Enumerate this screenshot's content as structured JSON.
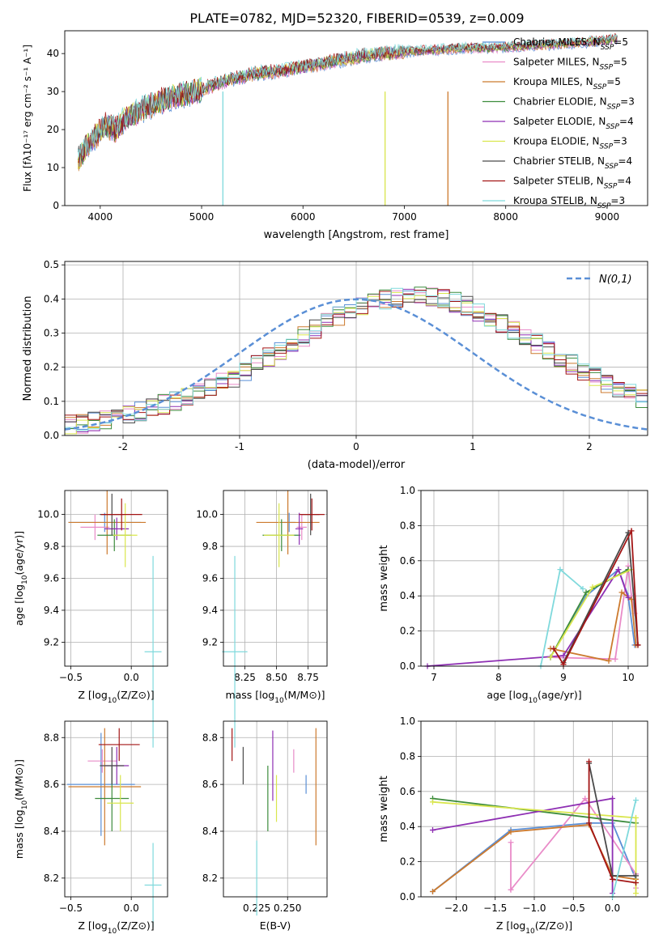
{
  "figure": {
    "title": "PLATE=0782, MJD=52320, FIBERID=0539, z=0.009"
  },
  "colors": {
    "Chabrier MILES": "#5a8fd6",
    "Salpeter MILES": "#e98bc8",
    "Kroupa MILES": "#cc7a2e",
    "Chabrier ELODIE": "#3d8c3d",
    "Salpeter ELODIE": "#8e2fb3",
    "Kroupa ELODIE": "#d9e64d",
    "Chabrier STELIB": "#4a4a4a",
    "Salpeter STELIB": "#a31515",
    "Kroupa STELIB": "#7fd9dc"
  },
  "chart_data": [
    {
      "id": "spectrum",
      "type": "line",
      "xlabel": "wavelength [Angstrom, rest frame]",
      "ylabel": "Flux [fλ10⁻¹⁷ erg cm⁻² s⁻¹ A⁻¹]",
      "xlim": [
        3650,
        9400
      ],
      "ylim": [
        0,
        46
      ],
      "xticks": [
        4000,
        5000,
        6000,
        7000,
        8000,
        9000
      ],
      "yticks": [
        0,
        10,
        20,
        30,
        40
      ],
      "grid": false,
      "legend_position": "top-right",
      "x": [
        3780,
        3850,
        3950,
        4050,
        4150,
        4250,
        4400,
        4550,
        4700,
        4850,
        5000,
        5200,
        5400,
        5600,
        5800,
        6000,
        6200,
        6400,
        6600,
        6800,
        7000,
        7300,
        7600,
        7900,
        8200,
        8500,
        8800,
        9000,
        9100
      ],
      "flux": [
        12,
        15,
        18,
        21,
        20,
        23,
        25,
        27,
        28.5,
        29.5,
        30.5,
        32.5,
        34,
        35,
        35.5,
        36.5,
        37.5,
        38.5,
        39.5,
        40,
        40.5,
        41,
        41.5,
        41.5,
        42,
        42.5,
        43,
        43.5,
        44
      ],
      "series": [
        {
          "name": "Chabrier MILES, N_SSP=5"
        },
        {
          "name": "Salpeter MILES, N_SSP=5"
        },
        {
          "name": "Kroupa MILES, N_SSP=5"
        },
        {
          "name": "Chabrier ELODIE, N_SSP=3"
        },
        {
          "name": "Salpeter ELODIE, N_SSP=4"
        },
        {
          "name": "Kroupa ELODIE, N_SSP=3"
        },
        {
          "name": "Chabrier STELIB, N_SSP=4"
        },
        {
          "name": "Salpeter STELIB, N_SSP=4"
        },
        {
          "name": "Kroupa STELIB, N_SSP=3"
        }
      ],
      "legend": [
        {
          "base": "Chabrier MILES, N",
          "sub": "SSP",
          "tail": "=5",
          "color": "#5a8fd6"
        },
        {
          "base": "Salpeter MILES, N",
          "sub": "SSP",
          "tail": "=5",
          "color": "#e98bc8"
        },
        {
          "base": "Kroupa MILES, N",
          "sub": "SSP",
          "tail": "=5",
          "color": "#cc7a2e"
        },
        {
          "base": "Chabrier ELODIE, N",
          "sub": "SSP",
          "tail": "=3",
          "color": "#3d8c3d"
        },
        {
          "base": "Salpeter ELODIE, N",
          "sub": "SSP",
          "tail": "=4",
          "color": "#8e2fb3"
        },
        {
          "base": "Kroupa ELODIE, N",
          "sub": "SSP",
          "tail": "=3",
          "color": "#d9e64d"
        },
        {
          "base": "Chabrier STELIB, N",
          "sub": "SSP",
          "tail": "=4",
          "color": "#4a4a4a"
        },
        {
          "base": "Salpeter STELIB, N",
          "sub": "SSP",
          "tail": "=4",
          "color": "#a31515"
        },
        {
          "base": "Kroupa STELIB, N",
          "sub": "SSP",
          "tail": "=3",
          "color": "#7fd9dc"
        }
      ],
      "drops": [
        {
          "x": 5210,
          "color": "#7fd9dc"
        },
        {
          "x": 6810,
          "color": "#d9e64d"
        },
        {
          "x": 7430,
          "color": "#cc7a2e"
        }
      ]
    },
    {
      "id": "residuals",
      "type": "histogram",
      "xlabel": "(data-model)/error",
      "ylabel": "Normed distribution",
      "xlim": [
        -2.5,
        2.5
      ],
      "ylim": [
        0,
        0.51
      ],
      "xticks": [
        -2,
        -1,
        0,
        1,
        2
      ],
      "yticks": [
        0.0,
        0.1,
        0.2,
        0.3,
        0.4,
        0.5
      ],
      "grid": true,
      "legend_position": "top-right",
      "legend_label": "N(0,1)",
      "bin_width": 0.1,
      "bin_start": -2.5,
      "envelope": [
        0.03,
        0.035,
        0.04,
        0.045,
        0.05,
        0.06,
        0.07,
        0.08,
        0.09,
        0.1,
        0.11,
        0.125,
        0.14,
        0.155,
        0.17,
        0.19,
        0.21,
        0.23,
        0.25,
        0.27,
        0.29,
        0.31,
        0.33,
        0.35,
        0.365,
        0.38,
        0.39,
        0.4,
        0.405,
        0.41,
        0.41,
        0.405,
        0.4,
        0.39,
        0.38,
        0.365,
        0.35,
        0.33,
        0.31,
        0.29,
        0.27,
        0.25,
        0.23,
        0.21,
        0.19,
        0.17,
        0.155,
        0.14,
        0.125,
        0.11
      ],
      "normal_curve": {
        "mu": 0,
        "sigma": 1,
        "label": "N(0,1)"
      }
    },
    {
      "id": "age-vs-Z",
      "type": "errorbar",
      "xlabel_base": "Z [log",
      "xlabel_tail": "(Z/Z⊙)]",
      "ylabel_base": "age  [log",
      "ylabel_tail": "(age/yr)]",
      "xlim": [
        -0.55,
        0.3
      ],
      "ylim": [
        9.05,
        10.15
      ],
      "xticks": [
        -0.5,
        0.0
      ],
      "yticks": [
        9.2,
        9.4,
        9.6,
        9.8,
        10.0
      ],
      "points": [
        {
          "x": -0.22,
          "y": 9.95,
          "xe": 0.3,
          "ye": 0.06,
          "color": "#5a8fd6"
        },
        {
          "x": -0.3,
          "y": 9.92,
          "xe": 0.12,
          "ye": 0.08,
          "color": "#e98bc8"
        },
        {
          "x": -0.2,
          "y": 9.95,
          "xe": 0.32,
          "ye": 0.2,
          "color": "#cc7a2e"
        },
        {
          "x": -0.14,
          "y": 9.87,
          "xe": 0.14,
          "ye": 0.1,
          "color": "#3d8c3d"
        },
        {
          "x": -0.12,
          "y": 9.91,
          "xe": 0.1,
          "ye": 0.07,
          "color": "#8e2fb3"
        },
        {
          "x": -0.05,
          "y": 9.87,
          "xe": 0.1,
          "ye": 0.2,
          "color": "#d9e64d"
        },
        {
          "x": -0.16,
          "y": 10.0,
          "xe": 0.1,
          "ye": 0.13,
          "color": "#4a4a4a"
        },
        {
          "x": -0.08,
          "y": 10.0,
          "xe": 0.17,
          "ye": 0.1,
          "color": "#a31515"
        },
        {
          "x": 0.18,
          "y": 9.14,
          "xe": 0.07,
          "ye": 0.6,
          "color": "#7fd9dc"
        }
      ]
    },
    {
      "id": "age-vs-mass",
      "type": "errorbar",
      "xlabel_base": "mass [log",
      "xlabel_tail": "(M/M⊙)]",
      "xlim": [
        8.08,
        8.9
      ],
      "ylim": [
        9.05,
        10.15
      ],
      "xticks": [
        8.25,
        8.5,
        8.75
      ],
      "yticks": [
        9.2,
        9.4,
        9.6,
        9.8,
        10.0
      ],
      "points": [
        {
          "x": 8.6,
          "y": 9.95,
          "xe": 0.05,
          "ye": 0.06,
          "color": "#5a8fd6"
        },
        {
          "x": 8.7,
          "y": 9.92,
          "xe": 0.04,
          "ye": 0.08,
          "color": "#e98bc8"
        },
        {
          "x": 8.59,
          "y": 9.95,
          "xe": 0.25,
          "ye": 0.2,
          "color": "#cc7a2e"
        },
        {
          "x": 8.54,
          "y": 9.87,
          "xe": 0.15,
          "ye": 0.1,
          "color": "#3d8c3d"
        },
        {
          "x": 8.68,
          "y": 9.91,
          "xe": 0.03,
          "ye": 0.1,
          "color": "#8e2fb3"
        },
        {
          "x": 8.52,
          "y": 9.87,
          "xe": 0.12,
          "ye": 0.2,
          "color": "#d9e64d"
        },
        {
          "x": 8.77,
          "y": 10.0,
          "xe": 0.07,
          "ye": 0.13,
          "color": "#4a4a4a"
        },
        {
          "x": 8.78,
          "y": 10.0,
          "xe": 0.1,
          "ye": 0.1,
          "color": "#a31515"
        },
        {
          "x": 8.17,
          "y": 9.14,
          "xe": 0.1,
          "ye": 0.6,
          "color": "#7fd9dc"
        }
      ]
    },
    {
      "id": "weight-vs-age",
      "type": "line",
      "xlabel_base": "age  [log",
      "xlabel_tail": "(age/yr)]",
      "ylabel": "mass weight",
      "xlim": [
        6.8,
        10.3
      ],
      "ylim": [
        0,
        1.0
      ],
      "xticks": [
        7,
        8,
        9,
        10
      ],
      "yticks": [
        0.0,
        0.2,
        0.4,
        0.6,
        0.8,
        1.0
      ],
      "grid": true,
      "series": [
        {
          "color": "#5a8fd6",
          "x": [
            8.8,
            9.35,
            9.85,
            10.0,
            10.1
          ],
          "y": [
            0.05,
            0.4,
            0.55,
            0.4,
            0.12
          ]
        },
        {
          "color": "#e98bc8",
          "x": [
            8.8,
            9.8,
            10.0,
            10.05,
            10.1
          ],
          "y": [
            0.05,
            0.04,
            0.57,
            0.4,
            0.3
          ]
        },
        {
          "color": "#cc7a2e",
          "x": [
            8.8,
            9.7,
            9.9,
            10.05,
            10.12
          ],
          "y": [
            0.1,
            0.03,
            0.42,
            0.38,
            0.12
          ]
        },
        {
          "color": "#3d8c3d",
          "x": [
            8.8,
            9.35,
            10.0
          ],
          "y": [
            0.05,
            0.42,
            0.55
          ]
        },
        {
          "color": "#8e2fb3",
          "x": [
            6.9,
            9.0,
            9.85,
            10.0
          ],
          "y": [
            0.0,
            0.06,
            0.55,
            0.39
          ]
        },
        {
          "color": "#d9e64d",
          "x": [
            8.8,
            9.45,
            10.05
          ],
          "y": [
            0.05,
            0.45,
            0.55
          ]
        },
        {
          "color": "#4a4a4a",
          "x": [
            9.0,
            10.0,
            10.15
          ],
          "y": [
            0.02,
            0.76,
            0.12
          ]
        },
        {
          "color": "#a31515",
          "x": [
            8.85,
            9.0,
            10.05,
            10.15
          ],
          "y": [
            0.1,
            0.01,
            0.77,
            0.12
          ]
        },
        {
          "color": "#7fd9dc",
          "x": [
            8.65,
            8.95,
            9.3
          ],
          "y": [
            0.0,
            0.55,
            0.44
          ]
        }
      ]
    },
    {
      "id": "mass-vs-Z",
      "type": "errorbar",
      "xlabel_base": "Z [log",
      "xlabel_tail": "(Z/Z⊙)]",
      "ylabel_base": "mass [log",
      "ylabel_tail": "(M/M⊙)]",
      "xlim": [
        -0.55,
        0.3
      ],
      "ylim": [
        8.12,
        8.87
      ],
      "xticks": [
        -0.5,
        0.0
      ],
      "yticks": [
        8.2,
        8.4,
        8.6,
        8.8
      ],
      "points": [
        {
          "x": -0.25,
          "y": 8.6,
          "xe": 0.28,
          "ye": 0.22,
          "color": "#5a8fd6"
        },
        {
          "x": -0.24,
          "y": 8.7,
          "xe": 0.12,
          "ye": 0.05,
          "color": "#e98bc8"
        },
        {
          "x": -0.22,
          "y": 8.59,
          "xe": 0.3,
          "ye": 0.25,
          "color": "#cc7a2e"
        },
        {
          "x": -0.16,
          "y": 8.54,
          "xe": 0.14,
          "ye": 0.14,
          "color": "#3d8c3d"
        },
        {
          "x": -0.12,
          "y": 8.68,
          "xe": 0.1,
          "ye": 0.08,
          "color": "#8e2fb3"
        },
        {
          "x": -0.09,
          "y": 8.52,
          "xe": 0.11,
          "ye": 0.12,
          "color": "#d9e64d"
        },
        {
          "x": -0.16,
          "y": 8.68,
          "xe": 0.1,
          "ye": 0.08,
          "color": "#4a4a4a"
        },
        {
          "x": -0.1,
          "y": 8.77,
          "xe": 0.17,
          "ye": 0.07,
          "color": "#a31515"
        },
        {
          "x": 0.18,
          "y": 8.17,
          "xe": 0.07,
          "ye": 0.18,
          "color": "#7fd9dc"
        }
      ]
    },
    {
      "id": "mass-vs-ebv",
      "type": "errorbar",
      "xlabel": "E(B-V)",
      "xlim": [
        0.198,
        0.282
      ],
      "ylim": [
        8.12,
        8.87
      ],
      "xticks": [
        0.225,
        0.25
      ],
      "xtick_labels": [
        "0.225",
        "0.250"
      ],
      "yticks": [
        8.2,
        8.4,
        8.6,
        8.8
      ],
      "points": [
        {
          "x": 0.265,
          "y": 8.6,
          "xe": 0,
          "ye": 0.04,
          "color": "#5a8fd6"
        },
        {
          "x": 0.255,
          "y": 8.7,
          "xe": 0,
          "ye": 0.05,
          "color": "#e98bc8"
        },
        {
          "x": 0.273,
          "y": 8.59,
          "xe": 0,
          "ye": 0.25,
          "color": "#cc7a2e"
        },
        {
          "x": 0.234,
          "y": 8.54,
          "xe": 0,
          "ye": 0.14,
          "color": "#3d8c3d"
        },
        {
          "x": 0.238,
          "y": 8.68,
          "xe": 0,
          "ye": 0.15,
          "color": "#8e2fb3"
        },
        {
          "x": 0.241,
          "y": 8.54,
          "xe": 0,
          "ye": 0.1,
          "color": "#d9e64d"
        },
        {
          "x": 0.214,
          "y": 8.68,
          "xe": 0,
          "ye": 0.08,
          "color": "#4a4a4a"
        },
        {
          "x": 0.205,
          "y": 8.77,
          "xe": 0,
          "ye": 0.07,
          "color": "#a31515"
        },
        {
          "x": 0.225,
          "y": 8.2,
          "xe": 0,
          "ye": 0.16,
          "color": "#7fd9dc"
        }
      ]
    },
    {
      "id": "weight-vs-Z",
      "type": "line",
      "xlabel_base": "Z [log",
      "xlabel_tail": "(Z/Z⊙)]",
      "ylabel": "mass weight",
      "xlim": [
        -2.45,
        0.45
      ],
      "ylim": [
        0,
        1.0
      ],
      "xticks": [
        -2.0,
        -1.5,
        -1.0,
        -0.5,
        0.0
      ],
      "xtick_labels": [
        "−2.0",
        "−1.5",
        "−1.0",
        "−0.5",
        "0.0"
      ],
      "yticks": [
        0.0,
        0.2,
        0.4,
        0.6,
        0.8,
        1.0
      ],
      "grid": true,
      "series": [
        {
          "color": "#5a8fd6",
          "x": [
            -2.3,
            -1.3,
            -0.3,
            0.0,
            0.3
          ],
          "y": [
            0.03,
            0.38,
            0.42,
            0.42,
            0.1
          ]
        },
        {
          "color": "#e98bc8",
          "x": [
            -1.3,
            -1.3,
            -0.35,
            0.3,
            0.3
          ],
          "y": [
            0.31,
            0.04,
            0.56,
            0.13,
            0.05
          ]
        },
        {
          "color": "#cc7a2e",
          "x": [
            -2.3,
            -1.3,
            -0.3,
            0.0,
            0.3
          ],
          "y": [
            0.03,
            0.37,
            0.41,
            0.12,
            0.1
          ]
        },
        {
          "color": "#3d8c3d",
          "x": [
            -2.3,
            0.3
          ],
          "y": [
            0.56,
            0.42
          ]
        },
        {
          "color": "#8e2fb3",
          "x": [
            -2.3,
            0.0,
            0.0
          ],
          "y": [
            0.38,
            0.56,
            0.02
          ]
        },
        {
          "color": "#d9e64d",
          "x": [
            -2.3,
            0.3,
            0.3
          ],
          "y": [
            0.54,
            0.45,
            0.02
          ]
        },
        {
          "color": "#4a4a4a",
          "x": [
            -0.3,
            0.0,
            0.3
          ],
          "y": [
            0.76,
            0.12,
            0.12
          ]
        },
        {
          "color": "#a31515",
          "x": [
            -0.3,
            -0.3,
            0.0,
            0.3
          ],
          "y": [
            0.77,
            0.42,
            0.1,
            0.08
          ]
        },
        {
          "color": "#7fd9dc",
          "x": [
            0.0,
            0.3
          ],
          "y": [
            0.0,
            0.55
          ]
        }
      ]
    }
  ]
}
